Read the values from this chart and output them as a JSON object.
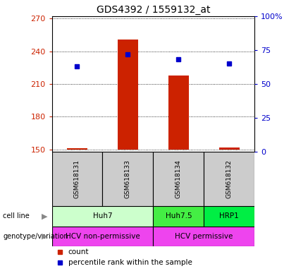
{
  "title": "GDS4392 / 1559132_at",
  "samples": [
    "GSM618131",
    "GSM618133",
    "GSM618134",
    "GSM618132"
  ],
  "count_values": [
    151.5,
    251.0,
    218.0,
    152.0
  ],
  "percentile_values": [
    63,
    72,
    68,
    65
  ],
  "ylim_left": [
    148,
    272
  ],
  "ylim_right": [
    0,
    100
  ],
  "yticks_left": [
    150,
    180,
    210,
    240,
    270
  ],
  "yticks_right": [
    0,
    25,
    50,
    75,
    100
  ],
  "bar_color": "#cc2200",
  "dot_color": "#0000cc",
  "bar_bottom": 150,
  "cell_line_spans": [
    {
      "label": "Huh7",
      "start": 0,
      "end": 2,
      "color": "#ccffcc"
    },
    {
      "label": "Huh7.5",
      "start": 2,
      "end": 3,
      "color": "#44ee44"
    },
    {
      "label": "HRP1",
      "start": 3,
      "end": 4,
      "color": "#00ee44"
    }
  ],
  "genotype_spans": [
    {
      "label": "HCV non-permissive",
      "start": 0,
      "end": 2,
      "color": "#ee44ee"
    },
    {
      "label": "HCV permissive",
      "start": 2,
      "end": 4,
      "color": "#ee44ee"
    }
  ],
  "cell_line_row_label": "cell line",
  "genotype_row_label": "genotype/variation",
  "legend_count_label": "count",
  "legend_pct_label": "percentile rank within the sample",
  "bar_color_legend": "#cc2200",
  "dot_color_legend": "#0000cc",
  "plot_bg": "#ffffff",
  "tick_color_left": "#cc2200",
  "tick_color_right": "#0000cc",
  "gray_sample_bg": "#cccccc"
}
